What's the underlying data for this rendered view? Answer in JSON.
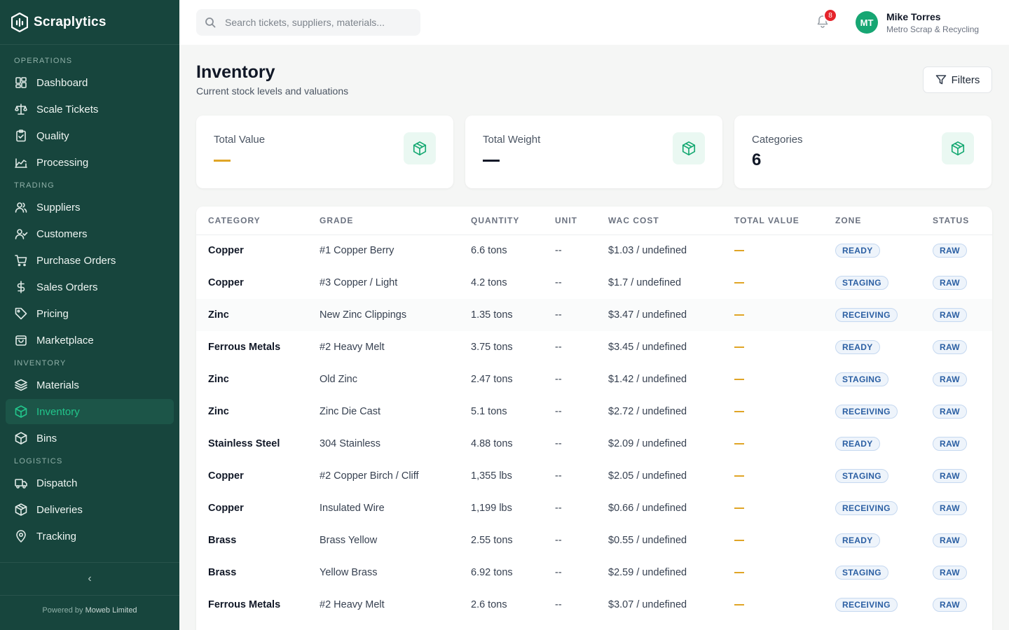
{
  "brand": {
    "name": "Scraplytics"
  },
  "sidebar": {
    "sections": [
      {
        "title": "OPERATIONS",
        "items": [
          {
            "label": "Dashboard",
            "icon": "dashboard-icon"
          },
          {
            "label": "Scale Tickets",
            "icon": "scale-icon"
          },
          {
            "label": "Quality",
            "icon": "clipboard-check-icon"
          },
          {
            "label": "Processing",
            "icon": "factory-icon"
          }
        ]
      },
      {
        "title": "TRADING",
        "items": [
          {
            "label": "Suppliers",
            "icon": "users-icon"
          },
          {
            "label": "Customers",
            "icon": "user-check-icon"
          },
          {
            "label": "Purchase Orders",
            "icon": "cart-icon"
          },
          {
            "label": "Sales Orders",
            "icon": "dollar-icon"
          },
          {
            "label": "Pricing",
            "icon": "tag-icon"
          },
          {
            "label": "Marketplace",
            "icon": "shopping-bag-icon"
          }
        ]
      },
      {
        "title": "INVENTORY",
        "items": [
          {
            "label": "Materials",
            "icon": "layers-icon"
          },
          {
            "label": "Inventory",
            "icon": "box-icon",
            "active": true
          },
          {
            "label": "Bins",
            "icon": "box-icon"
          }
        ]
      },
      {
        "title": "LOGISTICS",
        "items": [
          {
            "label": "Dispatch",
            "icon": "truck-icon"
          },
          {
            "label": "Deliveries",
            "icon": "package-icon"
          },
          {
            "label": "Tracking",
            "icon": "map-pin-icon"
          }
        ]
      }
    ],
    "collapse_label": "‹",
    "powered_prefix": "Powered by",
    "powered_company": "Moweb Limited"
  },
  "topbar": {
    "search_placeholder": "Search tickets, suppliers, materials...",
    "notification_count": "8",
    "user": {
      "initials": "MT",
      "name": "Mike Torres",
      "org": "Metro Scrap & Recycling"
    }
  },
  "header": {
    "title": "Inventory",
    "subtitle": "Current stock levels and valuations",
    "filters_label": "Filters"
  },
  "stats": [
    {
      "label": "Total Value",
      "value": "",
      "dash_color": "#e0a526"
    },
    {
      "label": "Total Weight",
      "value": "",
      "dash_color": "#111827"
    },
    {
      "label": "Categories",
      "value": "6"
    }
  ],
  "table": {
    "columns": [
      "CATEGORY",
      "GRADE",
      "QUANTITY",
      "UNIT",
      "WAC COST",
      "TOTAL VALUE",
      "ZONE",
      "STATUS"
    ],
    "rows": [
      {
        "category": "Copper",
        "grade": "#1 Copper Berry",
        "quantity": "6.6 tons",
        "unit": "--",
        "wac": "$1.03 / undefined",
        "zone": "READY",
        "status": "RAW"
      },
      {
        "category": "Copper",
        "grade": "#3 Copper / Light",
        "quantity": "4.2 tons",
        "unit": "--",
        "wac": "$1.7 / undefined",
        "zone": "STAGING",
        "status": "RAW"
      },
      {
        "category": "Zinc",
        "grade": "New Zinc Clippings",
        "quantity": "1.35 tons",
        "unit": "--",
        "wac": "$3.47 / undefined",
        "zone": "RECEIVING",
        "status": "RAW"
      },
      {
        "category": "Ferrous Metals",
        "grade": "#2 Heavy Melt",
        "quantity": "3.75 tons",
        "unit": "--",
        "wac": "$3.45 / undefined",
        "zone": "READY",
        "status": "RAW"
      },
      {
        "category": "Zinc",
        "grade": "Old Zinc",
        "quantity": "2.47 tons",
        "unit": "--",
        "wac": "$1.42 / undefined",
        "zone": "STAGING",
        "status": "RAW"
      },
      {
        "category": "Zinc",
        "grade": "Zinc Die Cast",
        "quantity": "5.1 tons",
        "unit": "--",
        "wac": "$2.72 / undefined",
        "zone": "RECEIVING",
        "status": "RAW"
      },
      {
        "category": "Stainless Steel",
        "grade": "304 Stainless",
        "quantity": "4.88 tons",
        "unit": "--",
        "wac": "$2.09 / undefined",
        "zone": "READY",
        "status": "RAW"
      },
      {
        "category": "Copper",
        "grade": "#2 Copper Birch / Cliff",
        "quantity": "1,355 lbs",
        "unit": "--",
        "wac": "$2.05 / undefined",
        "zone": "STAGING",
        "status": "RAW"
      },
      {
        "category": "Copper",
        "grade": "Insulated Wire",
        "quantity": "1,199 lbs",
        "unit": "--",
        "wac": "$0.66 / undefined",
        "zone": "RECEIVING",
        "status": "RAW"
      },
      {
        "category": "Brass",
        "grade": "Brass Yellow",
        "quantity": "2.55 tons",
        "unit": "--",
        "wac": "$0.55 / undefined",
        "zone": "READY",
        "status": "RAW"
      },
      {
        "category": "Brass",
        "grade": "Yellow Brass",
        "quantity": "6.92 tons",
        "unit": "--",
        "wac": "$2.59 / undefined",
        "zone": "STAGING",
        "status": "RAW"
      },
      {
        "category": "Ferrous Metals",
        "grade": "#2 Heavy Melt",
        "quantity": "2.6 tons",
        "unit": "--",
        "wac": "$3.07 / undefined",
        "zone": "RECEIVING",
        "status": "RAW"
      }
    ]
  },
  "colors": {
    "sidebar_bg": "#17453d",
    "accent": "#22c58b",
    "badge_blue": "#2b5fa3",
    "dash_amber": "#e0a526",
    "notification": "#e5242b"
  }
}
